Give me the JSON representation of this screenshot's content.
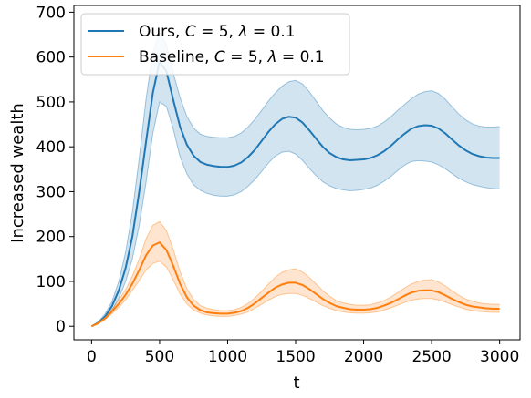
{
  "chart_data": {
    "type": "line",
    "title": "",
    "xlabel": "t",
    "ylabel": "Increased wealth",
    "xlim": [
      -130,
      3150
    ],
    "ylim": [
      -30,
      715
    ],
    "xticks": [
      0,
      500,
      1000,
      1500,
      2000,
      2500,
      3000
    ],
    "yticks": [
      0,
      100,
      200,
      300,
      400,
      500,
      600,
      700
    ],
    "grid": false,
    "legend_position": "top-left",
    "series": [
      {
        "name": "Ours, C = 5, λ = 0.1",
        "legend_parts": [
          "Ours, ",
          "C",
          " = 5, ",
          "λ",
          " = 0.1"
        ],
        "color": "#1f77b4",
        "x": [
          0,
          50,
          100,
          150,
          200,
          250,
          300,
          350,
          400,
          450,
          500,
          550,
          600,
          650,
          700,
          750,
          800,
          850,
          900,
          950,
          1000,
          1050,
          1100,
          1150,
          1200,
          1250,
          1300,
          1350,
          1400,
          1450,
          1500,
          1550,
          1600,
          1650,
          1700,
          1750,
          1800,
          1850,
          1900,
          1950,
          2000,
          2050,
          2100,
          2150,
          2200,
          2250,
          2300,
          2350,
          2400,
          2450,
          2500,
          2550,
          2600,
          2650,
          2700,
          2750,
          2800,
          2850,
          2900,
          2950,
          3000
        ],
        "y": [
          0,
          8,
          22,
          45,
          80,
          130,
          200,
          300,
          410,
          520,
          590,
          568,
          505,
          445,
          405,
          380,
          366,
          360,
          357,
          355,
          355,
          358,
          365,
          377,
          393,
          413,
          433,
          450,
          462,
          467,
          465,
          454,
          437,
          418,
          400,
          386,
          377,
          372,
          370,
          371,
          372,
          375,
          381,
          390,
          402,
          416,
          429,
          440,
          446,
          448,
          447,
          441,
          430,
          416,
          403,
          392,
          384,
          379,
          376,
          375,
          375
        ],
        "upper": [
          0,
          10,
          28,
          55,
          100,
          165,
          255,
          375,
          505,
          610,
          655,
          628,
          565,
          510,
          468,
          442,
          428,
          423,
          421,
          420,
          420,
          423,
          431,
          444,
          461,
          481,
          502,
          520,
          535,
          545,
          548,
          540,
          523,
          502,
          481,
          464,
          451,
          443,
          439,
          438,
          439,
          441,
          446,
          455,
          467,
          481,
          494,
          507,
          517,
          523,
          525,
          519,
          506,
          489,
          473,
          460,
          451,
          446,
          444,
          444,
          445
        ],
        "lower": [
          0,
          6,
          16,
          35,
          62,
          100,
          150,
          225,
          320,
          430,
          500,
          490,
          440,
          378,
          340,
          315,
          303,
          296,
          292,
          290,
          290,
          293,
          300,
          312,
          327,
          345,
          364,
          379,
          388,
          390,
          384,
          370,
          352,
          336,
          322,
          313,
          307,
          304,
          302,
          303,
          305,
          308,
          314,
          323,
          334,
          347,
          359,
          367,
          369,
          368,
          366,
          360,
          351,
          340,
          330,
          322,
          316,
          312,
          309,
          307,
          306
        ]
      },
      {
        "name": "Baseline, C = 5, λ = 0.1",
        "legend_parts": [
          "Baseline, ",
          "C",
          " = 5, ",
          "λ",
          " = 0.1"
        ],
        "color": "#ff7f0e",
        "x": [
          0,
          50,
          100,
          150,
          200,
          250,
          300,
          350,
          400,
          450,
          500,
          550,
          600,
          650,
          700,
          750,
          800,
          850,
          900,
          950,
          1000,
          1050,
          1100,
          1150,
          1200,
          1250,
          1300,
          1350,
          1400,
          1450,
          1500,
          1550,
          1600,
          1650,
          1700,
          1750,
          1800,
          1850,
          1900,
          1950,
          2000,
          2050,
          2100,
          2150,
          2200,
          2250,
          2300,
          2350,
          2400,
          2450,
          2500,
          2550,
          2600,
          2650,
          2700,
          2750,
          2800,
          2850,
          2900,
          2950,
          3000
        ],
        "y": [
          0,
          7,
          18,
          33,
          50,
          70,
          95,
          125,
          158,
          180,
          187,
          170,
          135,
          95,
          65,
          46,
          36,
          31,
          29,
          28,
          28,
          30,
          34,
          41,
          51,
          63,
          75,
          86,
          93,
          97,
          97,
          92,
          83,
          72,
          61,
          52,
          45,
          41,
          38,
          37,
          37,
          38,
          41,
          46,
          52,
          60,
          68,
          75,
          79,
          80,
          80,
          76,
          69,
          61,
          54,
          48,
          44,
          42,
          40,
          39,
          39
        ],
        "upper": [
          0,
          8,
          21,
          38,
          58,
          82,
          112,
          150,
          195,
          225,
          233,
          213,
          172,
          122,
          84,
          60,
          46,
          40,
          37,
          35,
          35,
          37,
          42,
          51,
          63,
          78,
          94,
          109,
          120,
          126,
          128,
          121,
          109,
          94,
          79,
          67,
          57,
          52,
          49,
          47,
          47,
          48,
          52,
          57,
          65,
          75,
          85,
          94,
          100,
          103,
          104,
          99,
          90,
          79,
          69,
          61,
          56,
          52,
          50,
          49,
          49
        ],
        "lower": [
          0,
          6,
          15,
          28,
          42,
          59,
          80,
          102,
          125,
          140,
          145,
          132,
          104,
          72,
          50,
          36,
          29,
          25,
          23,
          22,
          22,
          24,
          27,
          32,
          40,
          49,
          58,
          66,
          71,
          73,
          73,
          69,
          62,
          54,
          46,
          40,
          35,
          32,
          30,
          29,
          29,
          30,
          32,
          36,
          41,
          47,
          53,
          58,
          61,
          62,
          62,
          59,
          54,
          48,
          43,
          38,
          35,
          33,
          32,
          31,
          31
        ]
      }
    ]
  }
}
